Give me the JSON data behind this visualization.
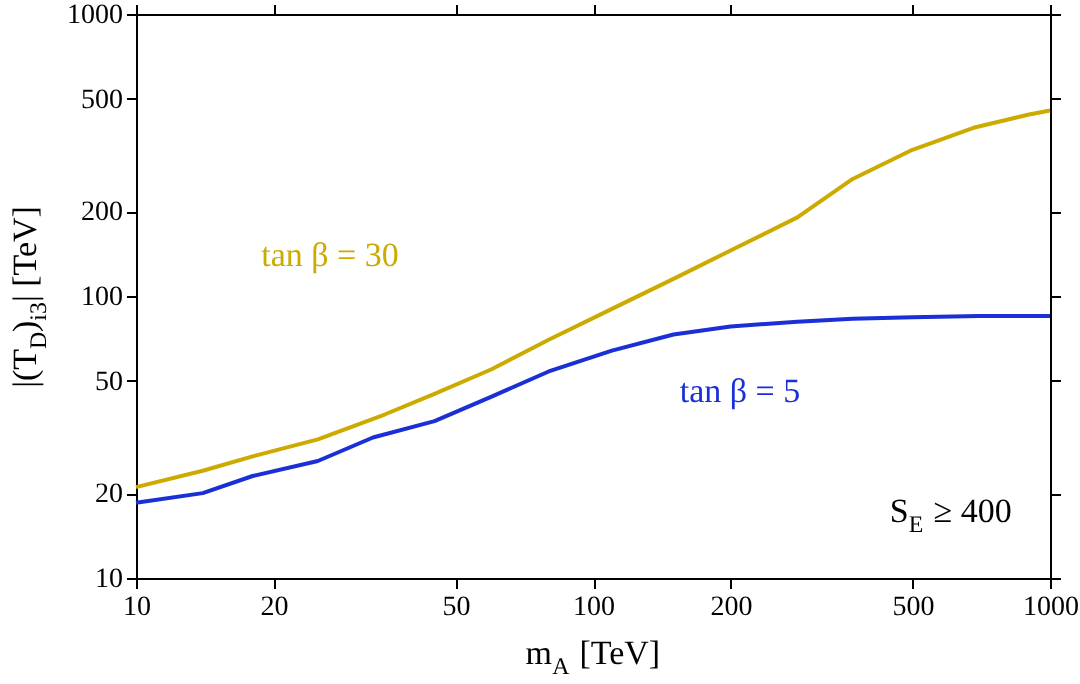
{
  "chart_data": {
    "type": "line",
    "xlabel": "m$_{A}$ [TeV]",
    "ylabel": "|(T$_{D}$)$_{i3}$| [TeV]",
    "log": "xy",
    "grid": false,
    "line_style": "solid",
    "marker": "none",
    "xlim": [
      10,
      1000
    ],
    "ylim": [
      10,
      1000
    ],
    "xticks": [
      10,
      20,
      50,
      100,
      200,
      500,
      {
        "value": 1000,
        "label": "1000"
      }
    ],
    "yticks": [
      10,
      20,
      50,
      100,
      200,
      500,
      {
        "value": 1000,
        "label": "1000"
      }
    ],
    "series": [
      {
        "name": "tan β = 30",
        "color": "#ccaa00",
        "x": [
          10,
          14,
          18,
          25,
          35,
          45,
          60,
          80,
          110,
          150,
          200,
          280,
          370,
          500,
          680,
          900,
          1000
        ],
        "values": [
          21,
          24,
          27,
          31,
          38,
          45,
          55,
          70,
          90,
          115,
          145,
          190,
          260,
          330,
          395,
          440,
          455
        ]
      },
      {
        "name": "tan β = 5",
        "color": "#1a2fd6",
        "x": [
          10,
          14,
          18,
          25,
          33,
          45,
          60,
          80,
          110,
          150,
          200,
          280,
          370,
          500,
          700,
          1000
        ],
        "values": [
          18.5,
          20,
          23,
          26,
          31.5,
          36,
          44,
          54,
          64,
          73,
          78,
          81,
          83,
          84,
          85,
          85
        ]
      }
    ],
    "annotations": [
      "S$_{E}$ ≥ 400"
    ]
  }
}
